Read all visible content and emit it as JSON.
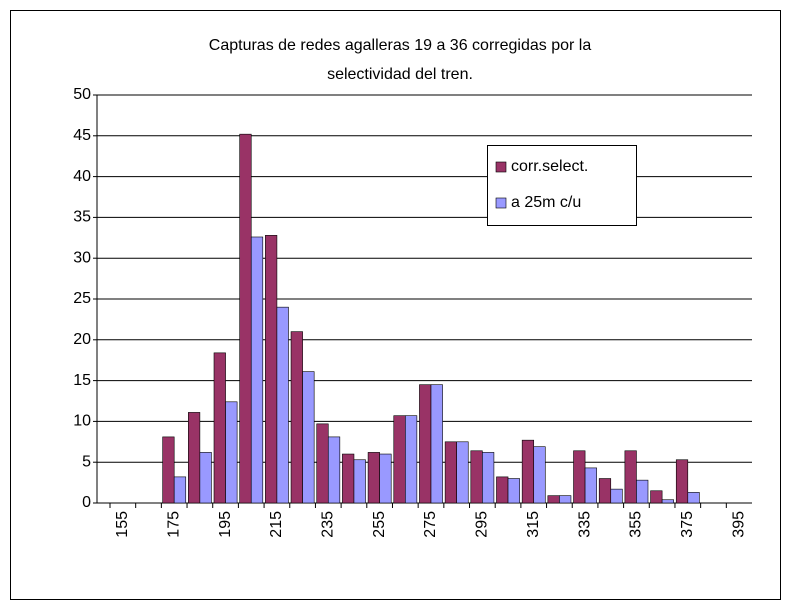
{
  "chart_data": {
    "type": "bar",
    "title": [
      "Capturas de redes agalleras 19 a 36 corregidas por la",
      "selectividad del tren."
    ],
    "categories": [
      "155",
      null,
      "175",
      null,
      "195",
      null,
      "215",
      null,
      "235",
      null,
      "255",
      null,
      "275",
      null,
      "295",
      null,
      "315",
      null,
      "335",
      null,
      "355",
      null,
      "375",
      null,
      "395"
    ],
    "series": [
      {
        "name": "corr.select.",
        "color": "#993366",
        "values": [
          0,
          0,
          8.1,
          11.1,
          18.4,
          45.2,
          32.8,
          21.0,
          9.7,
          6.0,
          6.2,
          10.7,
          14.5,
          7.5,
          6.4,
          3.2,
          7.7,
          0.9,
          6.4,
          3.0,
          6.4,
          1.5,
          5.3,
          0,
          0
        ]
      },
      {
        "name": "a 25m c/u",
        "color": "#9999ff",
        "values": [
          0,
          0,
          3.2,
          6.2,
          12.4,
          32.6,
          24.0,
          16.1,
          8.1,
          5.3,
          6.0,
          10.7,
          14.5,
          7.5,
          6.2,
          3.0,
          6.9,
          0.9,
          4.3,
          1.7,
          2.8,
          0.4,
          1.3,
          0,
          0
        ]
      }
    ],
    "ylim": [
      0,
      50
    ],
    "yticks": [
      0,
      5,
      10,
      15,
      20,
      25,
      30,
      35,
      40,
      45,
      50
    ],
    "grid": true
  }
}
